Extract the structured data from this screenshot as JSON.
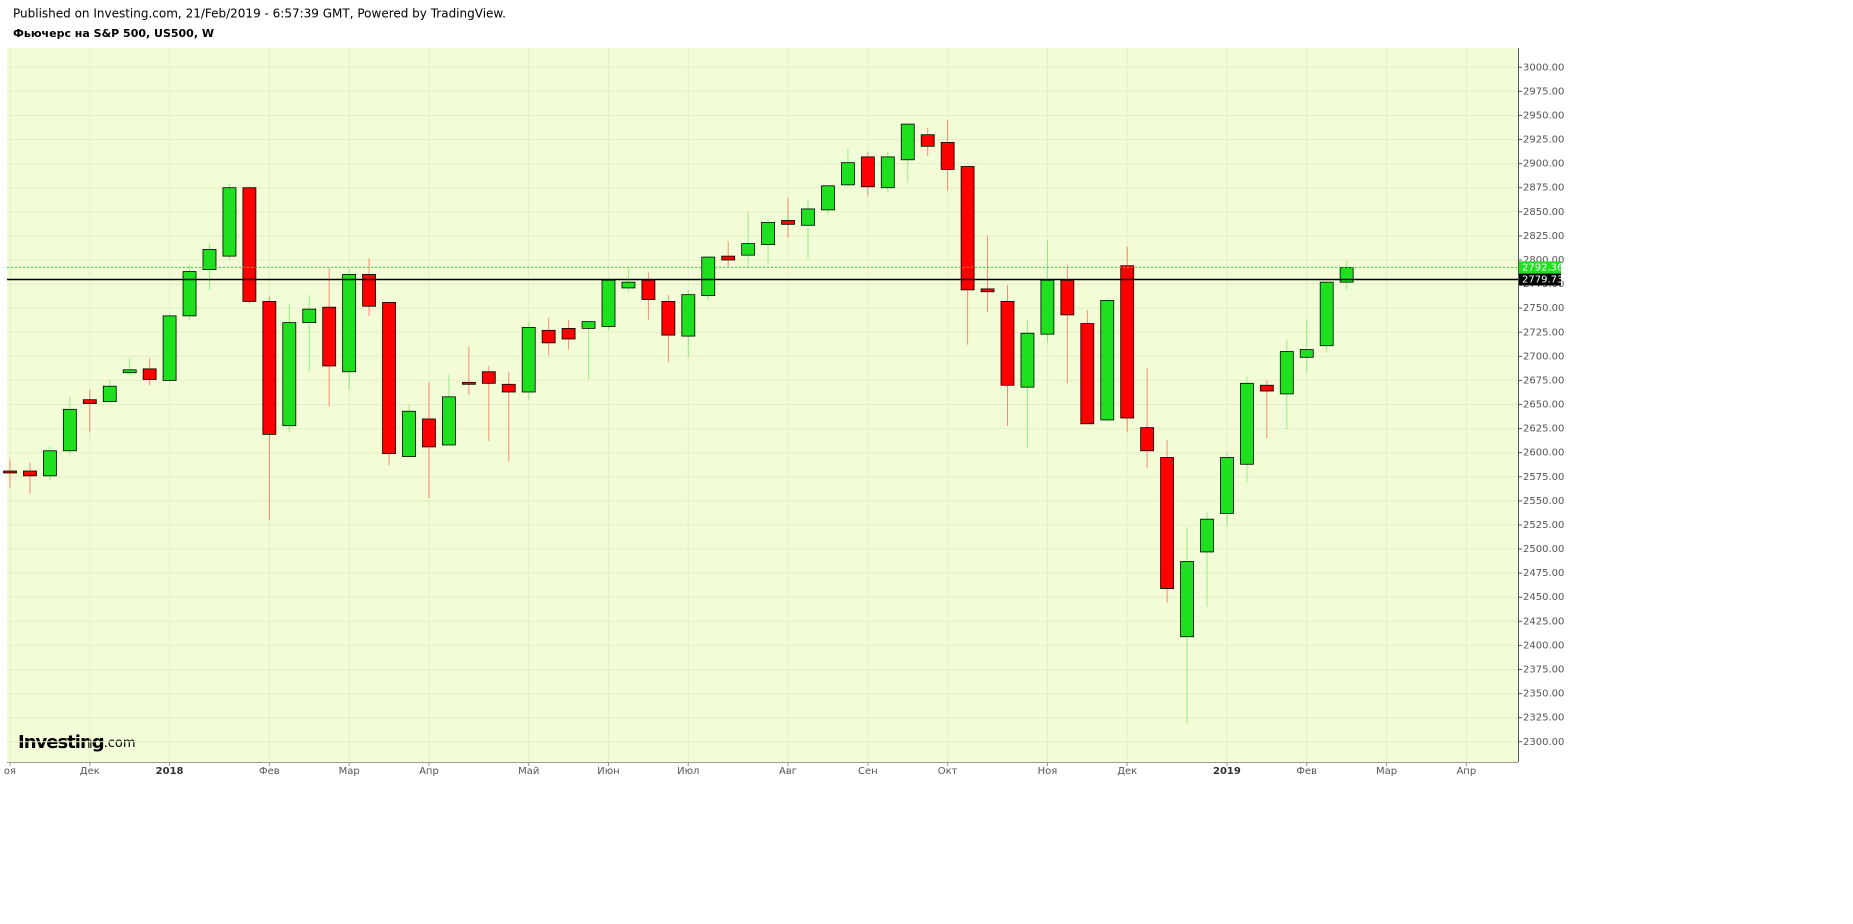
{
  "header": {
    "published": "Published on Investing.com, 21/Feb/2019 - 6:57:39 GMT, Powered by TradingView.",
    "title": "Фьючерс на S&P 500, US500, W"
  },
  "logo": {
    "main": "Investing",
    "suffix": ".com"
  },
  "chart_data": {
    "type": "candlestick",
    "categories": [
      "оя",
      null,
      null,
      null,
      "Дек",
      null,
      null,
      null,
      "2018",
      null,
      null,
      null,
      null,
      "Фев",
      null,
      null,
      null,
      "Мар",
      null,
      null,
      null,
      "Апр",
      null,
      null,
      null,
      null,
      "Май",
      null,
      null,
      null,
      "Июн",
      null,
      null,
      null,
      "Июл",
      null,
      null,
      null,
      null,
      "Авг",
      null,
      null,
      null,
      "Сен",
      null,
      null,
      null,
      "Окт",
      null,
      null,
      null,
      null,
      "Ноя",
      null,
      null,
      null,
      "Дек",
      null,
      null,
      null,
      null,
      "2019",
      null,
      null,
      null,
      "Фев",
      null,
      null,
      null,
      "Мар",
      null,
      null,
      null,
      "Апр",
      null,
      null
    ],
    "open": [
      2581,
      2581,
      2576,
      2602,
      2655,
      2653,
      2683,
      2687,
      2675,
      2742,
      2790,
      2804,
      2875,
      2757,
      2628,
      2735,
      2751,
      2684,
      2785,
      2756,
      2596,
      2635,
      2608,
      2673,
      2684,
      2671,
      2663,
      2727,
      2729,
      2729,
      2731,
      2771,
      2779,
      2757,
      2721,
      2763,
      2804,
      2805,
      2816,
      2841,
      2836,
      2852,
      2878,
      2907,
      2875,
      2904,
      2930,
      2922,
      2897,
      2770,
      2757,
      2668,
      2723,
      2779,
      2734,
      2634,
      2794,
      2626,
      2595,
      2409,
      2497,
      2537,
      2588,
      2670,
      2661,
      2699,
      2711,
      2777,
      null,
      null,
      null,
      null,
      null,
      null,
      null,
      null
    ],
    "high": [
      2593,
      2590,
      2607,
      2658,
      2665,
      2675,
      2698,
      2698,
      2743,
      2795,
      2817,
      2879,
      2876,
      2762,
      2755,
      2764,
      2792,
      2790,
      2802,
      2756,
      2650,
      2673,
      2681,
      2710,
      2690,
      2684,
      2736,
      2740,
      2738,
      2737,
      2781,
      2792,
      2787,
      2764,
      2769,
      2805,
      2819,
      2850,
      2843,
      2864,
      2862,
      2877,
      2916,
      2912,
      2912,
      2941,
      2937,
      2945,
      2897,
      2825,
      2774,
      2738,
      2820,
      2795,
      2748,
      2760,
      2814,
      2688,
      2613,
      2523,
      2539,
      2600,
      2679,
      2675,
      2717,
      2738,
      2777,
      2799,
      null,
      null,
      null,
      null,
      null,
      null,
      null,
      null
    ],
    "low": [
      2564,
      2557,
      2571,
      2598,
      2621,
      2651,
      2681,
      2670,
      2674,
      2738,
      2769,
      2800,
      2755,
      2530,
      2621,
      2684,
      2648,
      2665,
      2742,
      2587,
      2596,
      2553,
      2608,
      2660,
      2612,
      2591,
      2655,
      2701,
      2707,
      2676,
      2727,
      2767,
      2738,
      2694,
      2699,
      2758,
      2792,
      2792,
      2795,
      2823,
      2802,
      2847,
      2876,
      2866,
      2870,
      2880,
      2908,
      2872,
      2712,
      2746,
      2628,
      2605,
      2714,
      2672,
      2630,
      2632,
      2621,
      2584,
      2444,
      2319,
      2440,
      2524,
      2569,
      2615,
      2624,
      2683,
      2704,
      2769,
      null,
      null,
      null,
      null,
      null,
      null,
      null,
      null
    ],
    "close": [
      2579,
      2576,
      2602,
      2645,
      2651,
      2669,
      2686,
      2676,
      2742,
      2788,
      2811,
      2875,
      2757,
      2619,
      2735,
      2749,
      2690,
      2785,
      2752,
      2599,
      2643,
      2606,
      2658,
      2671,
      2672,
      2663,
      2730,
      2714,
      2718,
      2736,
      2779,
      2777,
      2759,
      2722,
      2764,
      2803,
      2800,
      2817,
      2839,
      2837,
      2853,
      2877,
      2901,
      2876,
      2907,
      2941,
      2918,
      2894,
      2769,
      2767,
      2670,
      2724,
      2779,
      2743,
      2630,
      2758,
      2636,
      2602,
      2459,
      2487,
      2531,
      2595,
      2672,
      2664,
      2705,
      2707,
      2777,
      2792.36,
      null,
      null,
      null,
      null,
      null,
      null,
      null,
      null
    ],
    "up_color": "#1ee01e",
    "down_color": "#ff0000",
    "ylim": [
      2279,
      3020
    ],
    "yticks": [
      {
        "value": 2300,
        "label": "2300.00"
      },
      {
        "value": 2325,
        "label": "2325.00"
      },
      {
        "value": 2350,
        "label": "2350.00"
      },
      {
        "value": 2375,
        "label": "2375.00"
      },
      {
        "value": 2400,
        "label": "2400.00"
      },
      {
        "value": 2425,
        "label": "2425.00"
      },
      {
        "value": 2450,
        "label": "2450.00"
      },
      {
        "value": 2475,
        "label": "2475.00"
      },
      {
        "value": 2500,
        "label": "2500.00"
      },
      {
        "value": 2525,
        "label": "2525.00"
      },
      {
        "value": 2550,
        "label": "2550.00"
      },
      {
        "value": 2575,
        "label": "2575.00"
      },
      {
        "value": 2600,
        "label": "2600.00"
      },
      {
        "value": 2625,
        "label": "2625.00"
      },
      {
        "value": 2650,
        "label": "2650.00"
      },
      {
        "value": 2675,
        "label": "2675.00"
      },
      {
        "value": 2700,
        "label": "2700.00"
      },
      {
        "value": 2725,
        "label": "2725.00"
      },
      {
        "value": 2750,
        "label": "2750.00"
      },
      {
        "value": 2775,
        "label": "2775.00"
      },
      {
        "value": 2800,
        "label": "2800.00"
      },
      {
        "value": 2825,
        "label": "2825.00"
      },
      {
        "value": 2850,
        "label": "2850.00"
      },
      {
        "value": 2875,
        "label": "2875.00"
      },
      {
        "value": 2900,
        "label": "2900.00"
      },
      {
        "value": 2925,
        "label": "2925.00"
      },
      {
        "value": 2950,
        "label": "2950.00"
      },
      {
        "value": 2975,
        "label": "2975.00"
      },
      {
        "value": 3000,
        "label": "3000.00"
      }
    ],
    "price_lines": [
      {
        "value": 2792.36,
        "color": "#1ee01e",
        "style": "dotted"
      },
      {
        "value": 2779.73,
        "color": "#000000",
        "style": "solid"
      }
    ],
    "grid": true
  }
}
